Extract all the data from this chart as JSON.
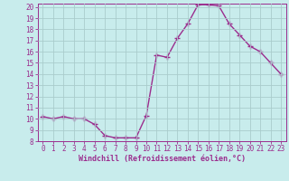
{
  "x": [
    0,
    1,
    2,
    3,
    4,
    5,
    6,
    7,
    8,
    9,
    10,
    11,
    12,
    13,
    14,
    15,
    16,
    17,
    18,
    19,
    20,
    21,
    22,
    23
  ],
  "y": [
    10.2,
    10.0,
    10.2,
    10.0,
    10.0,
    9.5,
    8.5,
    8.3,
    8.3,
    8.3,
    10.3,
    15.7,
    15.5,
    17.2,
    18.5,
    20.2,
    20.2,
    20.1,
    18.5,
    17.5,
    16.5,
    16.0,
    15.0,
    14.0
  ],
  "line_color": "#9b2d8e",
  "marker": "+",
  "markersize": 4,
  "linewidth": 1.0,
  "bg_color": "#c8ecec",
  "grid_color": "#aacccc",
  "xlabel": "Windchill (Refroidissement éolien,°C)",
  "xlabel_color": "#9b2d8e",
  "tick_color": "#9b2d8e",
  "ylim": [
    8,
    20
  ],
  "xlim": [
    -0.5,
    23.5
  ],
  "yticks": [
    8,
    9,
    10,
    11,
    12,
    13,
    14,
    15,
    16,
    17,
    18,
    19,
    20
  ],
  "xticks": [
    0,
    1,
    2,
    3,
    4,
    5,
    6,
    7,
    8,
    9,
    10,
    11,
    12,
    13,
    14,
    15,
    16,
    17,
    18,
    19,
    20,
    21,
    22,
    23
  ],
  "tick_fontsize": 5.5,
  "xlabel_fontsize": 6.0
}
